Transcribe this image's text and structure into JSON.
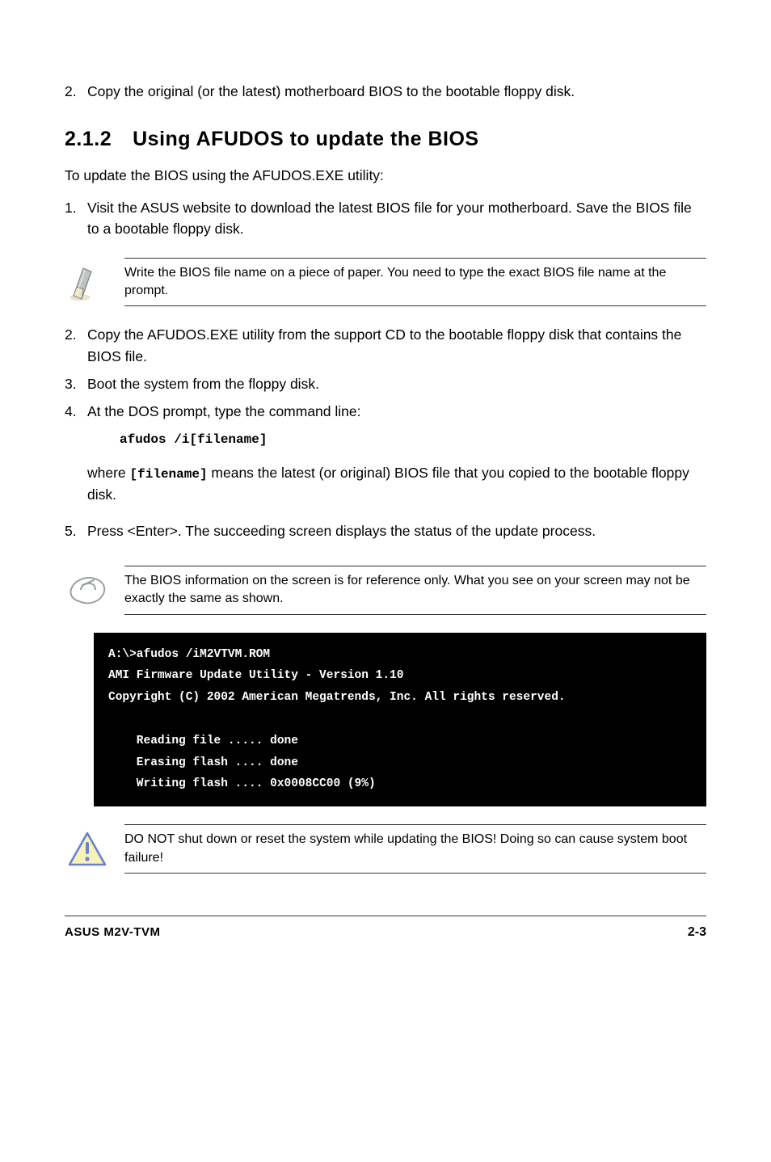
{
  "intro_item": {
    "num": "2.",
    "text": "Copy the original (or the latest) motherboard BIOS to the bootable floppy disk."
  },
  "heading": {
    "num": "2.1.2",
    "title": "Using AFUDOS to update the BIOS"
  },
  "lead": "To update the BIOS using the AFUDOS.EXE utility:",
  "steps1": [
    {
      "num": "1.",
      "text": "Visit the ASUS website to download the latest BIOS file for your motherboard. Save the BIOS file to a bootable floppy disk."
    }
  ],
  "note1": "Write the BIOS file name on a piece of paper. You need to type the exact BIOS file name at the prompt.",
  "steps2": [
    {
      "num": "2.",
      "text": "Copy the AFUDOS.EXE utility from the support CD to the bootable floppy disk that contains the BIOS file."
    },
    {
      "num": "3.",
      "text": "Boot the system from the floppy disk."
    },
    {
      "num": "4.",
      "text": "At the DOS prompt, type the command line:"
    }
  ],
  "cmd": "afudos /i[filename]",
  "where_pre": "where ",
  "where_code": "[filename]",
  "where_post": " means the latest (or original) BIOS file that you copied to the bootable floppy disk.",
  "steps3": [
    {
      "num": "5.",
      "text": "Press <Enter>. The succeeding screen displays the status of the update process."
    }
  ],
  "note2": "The BIOS information on the screen is for reference only. What you see on your screen may not be exactly the same as shown.",
  "terminal": "A:\\>afudos /iM2VTVM.ROM\nAMI Firmware Update Utility - Version 1.10\nCopyright (C) 2002 American Megatrends, Inc. All rights reserved.\n\n    Reading file ..... done\n    Erasing flash .... done\n    Writing flash .... 0x0008CC00 (9%)",
  "warn": "DO NOT shut down or reset the system while updating the BIOS! Doing so can cause system boot failure!",
  "footer": {
    "left": "ASUS M2V-TVM",
    "right": "2-3"
  },
  "colors": {
    "terminal_bg": "#000000",
    "terminal_fg": "#ffffff",
    "rule": "#333333",
    "warn_stroke": "#6b7fd7",
    "warn_fill": "#f7f2b8",
    "note_stroke": "#9aa0a0"
  }
}
